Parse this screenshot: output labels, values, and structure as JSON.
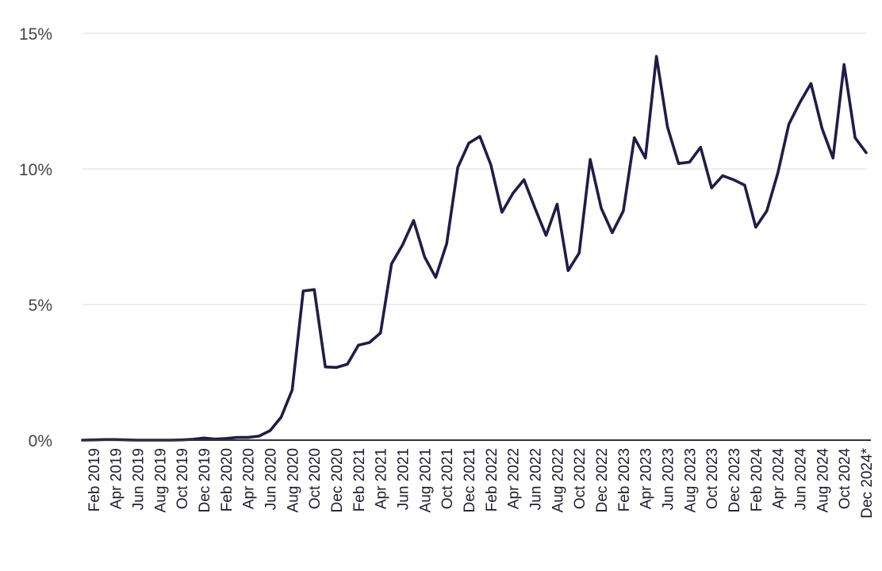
{
  "chart_data": {
    "type": "line",
    "title": "",
    "xlabel": "",
    "ylabel": "",
    "ylim": [
      0,
      15
    ],
    "grid": true,
    "y_ticks": [
      "0%",
      "5%",
      "10%",
      "15%"
    ],
    "y_tick_values": [
      0,
      5,
      10,
      15
    ],
    "x_tick_labels": [
      "Feb 2019",
      "Apr 2019",
      "Jun 2019",
      "Aug 2019",
      "Oct 2019",
      "Dec 2019",
      "Feb 2020",
      "Apr 2020",
      "Jun 2020",
      "Aug 2020",
      "Oct 2020",
      "Dec 2020",
      "Feb 2021",
      "Apr 2021",
      "Jun 2021",
      "Aug 2021",
      "Oct 2021",
      "Dec 2021",
      "Feb 2022",
      "Apr 2022",
      "Jun 2022",
      "Aug 2022",
      "Oct 2022",
      "Dec 2022",
      "Feb 2023",
      "Apr 2023",
      "Jun 2023",
      "Aug 2023",
      "Oct 2023",
      "Dec 2023",
      "Feb 2024",
      "Apr 2024",
      "Jun 2024",
      "Aug 2024",
      "Oct 2024",
      "Dec 2024*"
    ],
    "x": [
      "Jan 2019",
      "Feb 2019",
      "Mar 2019",
      "Apr 2019",
      "May 2019",
      "Jun 2019",
      "Jul 2019",
      "Aug 2019",
      "Sep 2019",
      "Oct 2019",
      "Nov 2019",
      "Dec 2019",
      "Jan 2020",
      "Feb 2020",
      "Mar 2020",
      "Apr 2020",
      "May 2020",
      "Jun 2020",
      "Jul 2020",
      "Aug 2020",
      "Sep 2020",
      "Oct 2020",
      "Nov 2020",
      "Dec 2020",
      "Jan 2021",
      "Feb 2021",
      "Mar 2021",
      "Apr 2021",
      "May 2021",
      "Jun 2021",
      "Jul 2021",
      "Aug 2021",
      "Sep 2021",
      "Oct 2021",
      "Nov 2021",
      "Dec 2021",
      "Jan 2022",
      "Feb 2022",
      "Mar 2022",
      "Apr 2022",
      "May 2022",
      "Jun 2022",
      "Jul 2022",
      "Aug 2022",
      "Sep 2022",
      "Oct 2022",
      "Nov 2022",
      "Dec 2022",
      "Jan 2023",
      "Feb 2023",
      "Mar 2023",
      "Apr 2023",
      "May 2023",
      "Jun 2023",
      "Jul 2023",
      "Aug 2023",
      "Sep 2023",
      "Oct 2023",
      "Nov 2023",
      "Dec 2023",
      "Jan 2024",
      "Feb 2024",
      "Mar 2024",
      "Apr 2024",
      "May 2024",
      "Jun 2024",
      "Jul 2024",
      "Aug 2024",
      "Sep 2024",
      "Oct 2024",
      "Nov 2024",
      "Dec 2024*"
    ],
    "series": [
      {
        "color": "#1f1d47",
        "values": [
          0.0,
          0.01,
          0.02,
          0.02,
          0.01,
          0.0,
          0.0,
          0.0,
          0.0,
          0.01,
          0.03,
          0.08,
          0.04,
          0.06,
          0.1,
          0.1,
          0.15,
          0.35,
          0.85,
          1.85,
          5.5,
          5.55,
          2.7,
          2.68,
          2.8,
          3.5,
          3.6,
          3.95,
          6.5,
          7.2,
          8.1,
          6.75,
          6.0,
          7.25,
          10.05,
          10.95,
          11.2,
          10.15,
          8.4,
          9.1,
          9.6,
          8.55,
          7.55,
          8.7,
          6.25,
          6.9,
          10.35,
          8.55,
          7.65,
          8.45,
          11.15,
          10.4,
          14.15,
          11.55,
          10.2,
          10.25,
          10.8,
          9.3,
          9.75,
          9.6,
          9.4,
          7.85,
          8.45,
          9.85,
          11.65,
          12.45,
          13.15,
          11.5,
          10.4,
          13.85,
          11.15,
          10.6
        ]
      }
    ]
  }
}
